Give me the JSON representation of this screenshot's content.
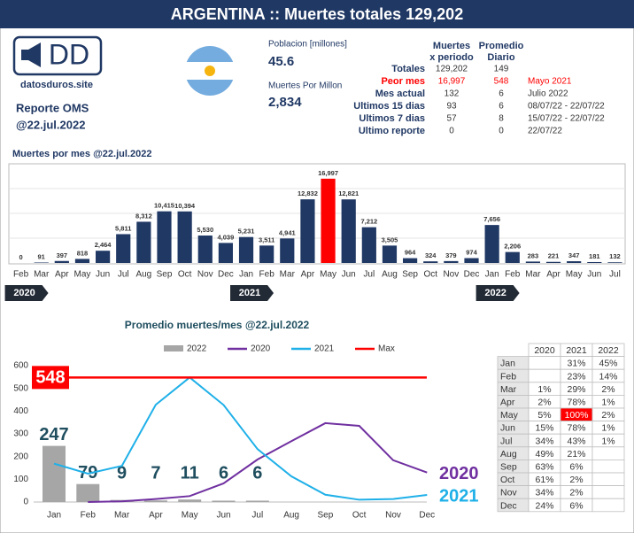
{
  "header": {
    "title": "ARGENTINA :: Muertes totales 129,202"
  },
  "logo": {
    "mark": "DD",
    "site": "datosduros.site",
    "report": "Reporte OMS",
    "date": "@22.jul.2022"
  },
  "population": {
    "label": "Poblacion [millones]",
    "value": "45.6"
  },
  "per_million": {
    "label": "Muertes Por Millon",
    "value": "2,834"
  },
  "stats": {
    "columns": [
      [
        "Muertes",
        "x periodo"
      ],
      [
        "Promedio",
        "Diario"
      ]
    ],
    "rows": [
      {
        "label": "Totales",
        "total": "129,202",
        "daily": "149",
        "period": null
      },
      {
        "label": "Peor mes",
        "total": "16,997",
        "daily": "548",
        "period": "Mayo 2021",
        "color": "#ff0000"
      },
      {
        "label": "Mes actual",
        "total": "132",
        "daily": "6",
        "period": "Julio 2022"
      },
      {
        "label": "Ultimos 15 dias",
        "total": "93",
        "daily": "6",
        "period": "08/07/22 - 22/07/22"
      },
      {
        "label": "Ultimos 7 dias",
        "total": "57",
        "daily": "8",
        "period": "15/07/22 - 22/07/22"
      },
      {
        "label": "Ultimo reporte",
        "total": "0",
        "daily": "0",
        "period": "22/07/22"
      }
    ]
  },
  "chart_data": [
    {
      "type": "bar",
      "title": "Muertes por mes @22.jul.2022",
      "categories": [
        "Feb",
        "Mar",
        "Apr",
        "May",
        "Jun",
        "Jul",
        "Aug",
        "Sep",
        "Oct",
        "Nov",
        "Dec",
        "Jan",
        "Feb",
        "Mar",
        "Apr",
        "May",
        "Jun",
        "Jul",
        "Aug",
        "Sep",
        "Oct",
        "Nov",
        "Dec",
        "Jan",
        "Feb",
        "Mar",
        "Apr",
        "May",
        "Jun",
        "Jul"
      ],
      "values": [
        0,
        91,
        397,
        818,
        2464,
        5811,
        8312,
        10415,
        10394,
        5530,
        4039,
        5231,
        3511,
        4941,
        12832,
        16997,
        12821,
        7212,
        3505,
        964,
        324,
        379,
        974,
        7656,
        2206,
        283,
        221,
        347,
        181,
        132
      ],
      "value_labels": [
        "0",
        "91",
        "397",
        "818",
        "2,464",
        "5,811",
        "8,312",
        "10,415",
        "10,394",
        "5,530",
        "4,039",
        "5,231",
        "3,511",
        "4,941",
        "12,832",
        "16,997",
        "12,821",
        "7,212",
        "3,505",
        "964",
        "324",
        "379",
        "974",
        "7,656",
        "2,206",
        "283",
        "221",
        "347",
        "181",
        "132"
      ],
      "year_labels": [
        "2020",
        "2021",
        "2022"
      ],
      "color": "#203864",
      "highlight_color": "#ff0000",
      "ylim": [
        0,
        20000
      ]
    },
    {
      "type": "line",
      "title": "Promedio muertes/mes @22.jul.2022",
      "categories": [
        "Jan",
        "Feb",
        "Mar",
        "Apr",
        "May",
        "Jun",
        "Jul",
        "Aug",
        "Sep",
        "Oct",
        "Nov",
        "Dec"
      ],
      "series": [
        {
          "name": "2022",
          "type": "bar",
          "color": "#a6a6a6",
          "label_color": "#1f4e5f",
          "values": [
            247,
            79,
            9,
            7,
            11,
            6,
            6,
            null,
            null,
            null,
            null,
            null
          ]
        },
        {
          "name": "2020",
          "color": "#7030a0",
          "end_label": true,
          "values": [
            null,
            0,
            3,
            13,
            26,
            82,
            187,
            268,
            347,
            335,
            184,
            130
          ]
        },
        {
          "name": "2021",
          "color": "#1fb0e8",
          "end_label": true,
          "values": [
            169,
            125,
            159,
            428,
            548,
            427,
            233,
            113,
            32,
            10,
            13,
            31
          ]
        }
      ],
      "reference_line": {
        "name": "Max",
        "value": 548,
        "color": "#ff0000"
      },
      "ylim": [
        0,
        600
      ],
      "yticks": [
        0,
        100,
        200,
        300,
        400,
        500,
        600
      ]
    }
  ],
  "month_table": {
    "columns": [
      null,
      "2020",
      "2021",
      "2022"
    ],
    "highlight_color": "#ff0000",
    "rows": [
      [
        "Jan",
        null,
        "31%",
        "45%"
      ],
      [
        "Feb",
        null,
        "23%",
        "14%"
      ],
      [
        "Mar",
        "1%",
        "29%",
        "2%"
      ],
      [
        "Apr",
        "2%",
        "78%",
        "1%"
      ],
      [
        "May",
        "5%",
        "100%",
        "2%"
      ],
      [
        "Jun",
        "15%",
        "78%",
        "1%"
      ],
      [
        "Jul",
        "34%",
        "43%",
        "1%"
      ],
      [
        "Aug",
        "49%",
        "21%",
        null
      ],
      [
        "Sep",
        "63%",
        "6%",
        null
      ],
      [
        "Oct",
        "61%",
        "2%",
        null
      ],
      [
        "Nov",
        "34%",
        "2%",
        null
      ],
      [
        "Dec",
        "24%",
        "6%",
        null
      ]
    ]
  }
}
